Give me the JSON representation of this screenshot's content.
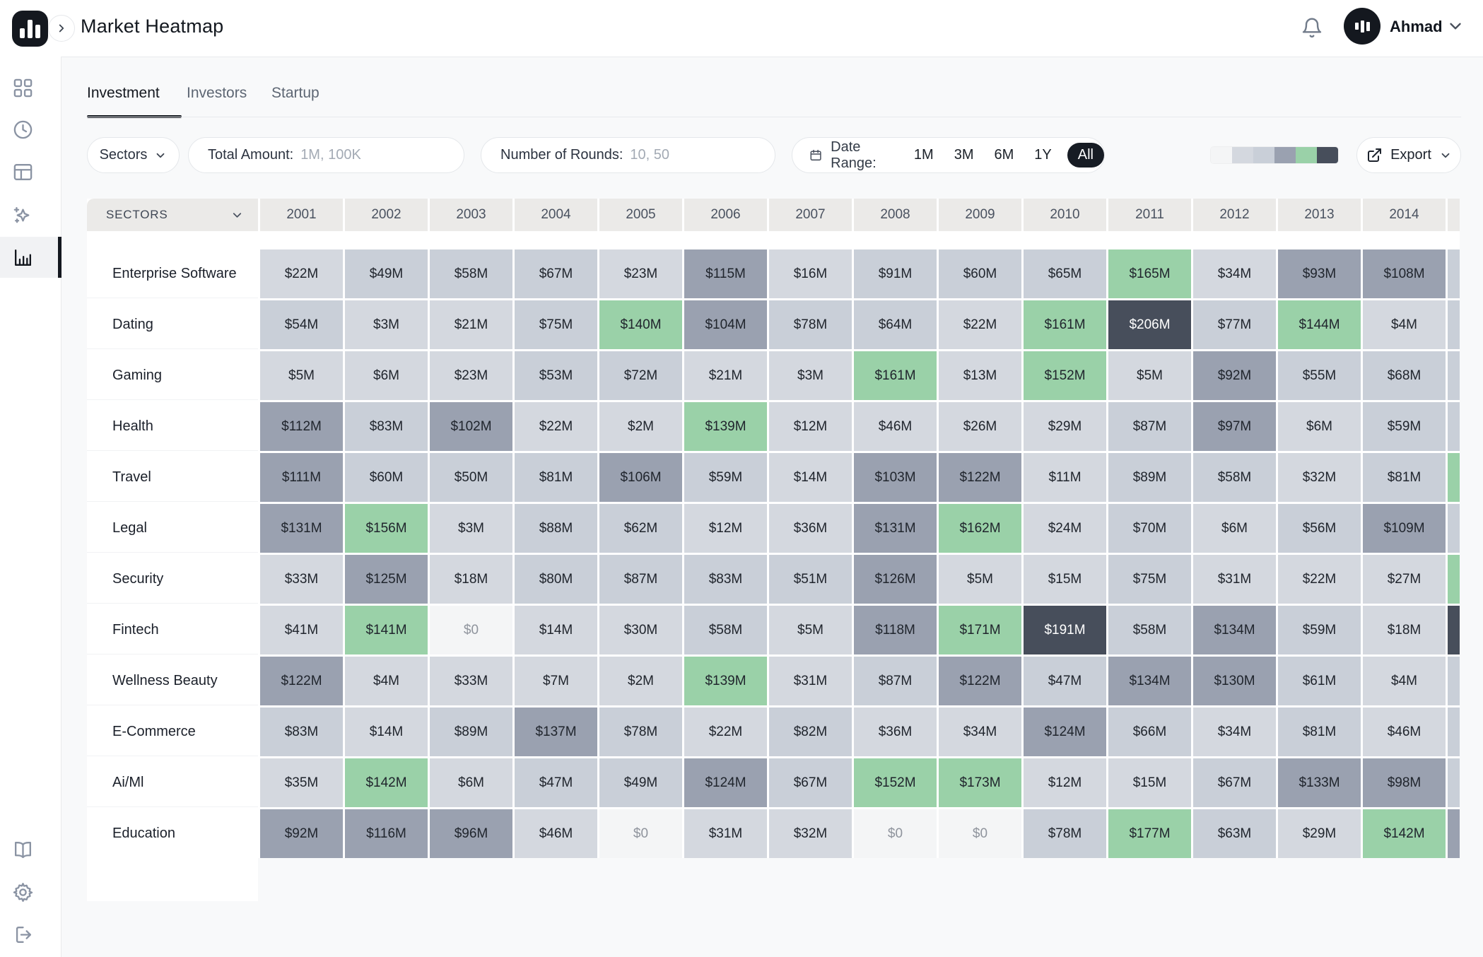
{
  "header": {
    "title": "Market Heatmap",
    "user_name": "Ahmad",
    "icons": [
      "app-logo-bar-chart",
      "collapse-chevron",
      "notification-bell",
      "user-avatar-bar-chart",
      "chevron-down"
    ]
  },
  "sidebar": {
    "top_items": [
      {
        "icon": "dashboard-grid-icon",
        "active": false
      },
      {
        "icon": "history-clock-icon",
        "active": false
      },
      {
        "icon": "layout-table-icon",
        "active": false
      },
      {
        "icon": "sparkles-icon",
        "active": false
      },
      {
        "icon": "bar-chart-icon",
        "active": true
      }
    ],
    "bottom_items": [
      {
        "icon": "book-icon"
      },
      {
        "icon": "settings-gear-icon"
      },
      {
        "icon": "logout-icon"
      }
    ]
  },
  "tabs": [
    {
      "label": "Investment",
      "active": true
    },
    {
      "label": "Investors",
      "active": false
    },
    {
      "label": "Startup",
      "active": false
    }
  ],
  "filters": {
    "sectors_label": "Sectors",
    "total_amount_label": "Total Amount:",
    "total_amount_placeholder": "1M, 100K",
    "rounds_label": "Number of Rounds:",
    "rounds_placeholder": "10, 50",
    "date_range_label": "Date Range:",
    "date_options": [
      "1M",
      "3M",
      "6M",
      "1Y",
      "All"
    ],
    "date_selected": "All",
    "export_label": "Export"
  },
  "legend": {
    "colors": [
      "#f4f5f6",
      "#d4d8df",
      "#c9cfd8",
      "#9aa1b0",
      "#9ad1a8",
      "#474e5b"
    ]
  },
  "chart_data": {
    "type": "heatmap",
    "title": "Market Heatmap",
    "value_format": "$<v>M",
    "columns_header_label": "SECTORS",
    "x": [
      "2001",
      "2002",
      "2003",
      "2004",
      "2005",
      "2006",
      "2007",
      "2008",
      "2009",
      "2010",
      "2011",
      "2012",
      "2013",
      "2014"
    ],
    "color_scale": {
      "zero": "#f4f5f6",
      "low": "#d4d8df",
      "midlow": "#c9cfd8",
      "mid": "#9aa1b0",
      "high": "#9ad1a8",
      "top": "#474e5b",
      "bucket_thresholds_musd": [
        0,
        46,
        91,
        137,
        183
      ]
    },
    "rows": [
      {
        "sector": "Enterprise Software",
        "values": [
          22,
          49,
          58,
          67,
          23,
          115,
          16,
          91,
          60,
          65,
          165,
          34,
          93,
          108
        ],
        "partial_next_col": "midlow"
      },
      {
        "sector": "Dating",
        "values": [
          54,
          3,
          21,
          75,
          140,
          104,
          78,
          64,
          22,
          161,
          206,
          77,
          144,
          4
        ],
        "partial_next_col": "midlow"
      },
      {
        "sector": "Gaming",
        "values": [
          5,
          6,
          23,
          53,
          72,
          21,
          3,
          161,
          13,
          152,
          5,
          92,
          55,
          68
        ],
        "partial_next_col": "midlow"
      },
      {
        "sector": "Health",
        "values": [
          112,
          83,
          102,
          22,
          2,
          139,
          12,
          46,
          26,
          29,
          87,
          97,
          6,
          59
        ],
        "partial_next_col": "midlow"
      },
      {
        "sector": "Travel",
        "values": [
          111,
          60,
          50,
          81,
          106,
          59,
          14,
          103,
          122,
          11,
          89,
          58,
          32,
          81
        ],
        "partial_next_col": "high"
      },
      {
        "sector": "Legal",
        "values": [
          131,
          156,
          3,
          88,
          62,
          12,
          36,
          131,
          162,
          24,
          70,
          6,
          56,
          109
        ],
        "partial_next_col": "midlow"
      },
      {
        "sector": "Security",
        "values": [
          33,
          125,
          18,
          80,
          87,
          83,
          51,
          126,
          5,
          15,
          75,
          31,
          22,
          27
        ],
        "partial_next_col": "high"
      },
      {
        "sector": "Fintech",
        "values": [
          41,
          141,
          0,
          14,
          30,
          58,
          5,
          118,
          171,
          191,
          58,
          134,
          59,
          18
        ],
        "partial_next_col": "top"
      },
      {
        "sector": "Wellness Beauty",
        "values": [
          122,
          4,
          33,
          7,
          2,
          139,
          31,
          87,
          122,
          47,
          134,
          130,
          61,
          4
        ],
        "partial_next_col": "midlow"
      },
      {
        "sector": "E-Commerce",
        "values": [
          83,
          14,
          89,
          137,
          78,
          22,
          82,
          36,
          34,
          124,
          66,
          34,
          81,
          46
        ],
        "partial_next_col": "midlow"
      },
      {
        "sector": "Ai/Ml",
        "values": [
          35,
          142,
          6,
          47,
          49,
          124,
          67,
          152,
          173,
          12,
          15,
          67,
          133,
          98
        ],
        "partial_next_col": "midlow"
      },
      {
        "sector": "Education",
        "values": [
          92,
          116,
          96,
          46,
          0,
          31,
          32,
          0,
          0,
          78,
          177,
          63,
          29,
          142
        ],
        "partial_next_col": "mid"
      }
    ]
  }
}
